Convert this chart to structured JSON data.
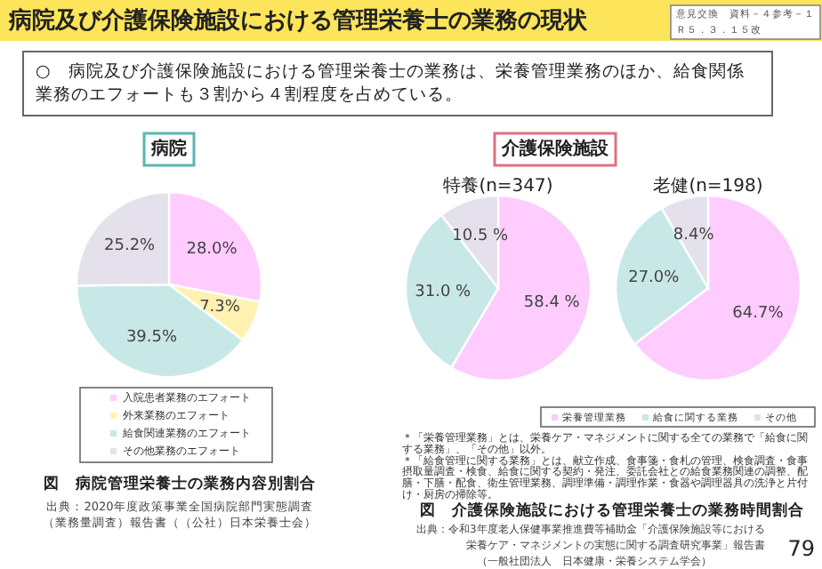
{
  "chart_data": [
    {
      "type": "other",
      "title": "病院及び介護保険施設における管理栄養士の業務の現状",
      "subtitle": "○　病院及び介護保険施設における管理栄養士の業務は、栄養管理業務のほか、給食関係業務のエフォートも３割から４割程度を占めている。",
      "annotations": [
        "意見交換　資料－４参考－１",
        "Ｒ５．３．１５改",
        "79"
      ]
    },
    {
      "type": "pie",
      "title": "病院",
      "categories": [
        "入院患者業務のエフォート",
        "外来業務のエフォート",
        "給食関連業務のエフォート",
        "その他業務のエフォート"
      ],
      "values": [
        28.0,
        7.3,
        39.5,
        25.2
      ],
      "colors": [
        "#ffccff",
        "#fff2b0",
        "#c8e8e8",
        "#e4e0ec"
      ],
      "value_labels": [
        "28.0%",
        "7.3%",
        "39.5%",
        "25.2%"
      ],
      "legend": "bottom",
      "annotations": [
        "図　病院管理栄養士の業務内容別割合",
        "出典：2020年度政策事業全国病院部門実態調査",
        "（業務量調査）報告書（（公社）日本栄養士会）"
      ]
    },
    {
      "type": "pie",
      "title": "介護保険施設",
      "subtitle": "特養(n=347)",
      "categories": [
        "栄養管理業務",
        "給食に関する業務",
        "その他"
      ],
      "values": [
        58.4,
        31.0,
        10.5
      ],
      "colors": [
        "#ffccff",
        "#c8e8e8",
        "#e4e0ec"
      ],
      "value_labels": [
        "58.4 %",
        "31.0 %",
        "10.5 %"
      ],
      "legend": "bottom"
    },
    {
      "type": "pie",
      "title": "老健(n=198)",
      "categories": [
        null,
        null,
        null
      ],
      "values": [
        64.7,
        27.0,
        8.4
      ],
      "colors": [
        "#ffccff",
        "#c8e8e8",
        "#e4e0ec"
      ],
      "value_labels": [
        "64.7%",
        "27.0%",
        "8.4%"
      ],
      "annotations": [
        "＊「栄養管理業務」とは、栄養ケア・マネジメントに関する全ての業務で「給食に関する業務」、「その他」以外。",
        "＊「給食管理に関する業務」とは、献立作成、食事箋・食札の管理、検食調査・食事摂取量調査・検食、給食に関する契約・発注、委託会社との給食業務関連の調整、配膳・下膳・配食、衛生管理業務、調理準備・調理作業・食器や調理器具の洗浄と片付け・厨房の掃除等。",
        "図　介護保険施設における管理栄養士の業務時間割合",
        "出典：令和3年度老人保健事業推進費等補助金「介護保険施設等における",
        "栄養ケア・マネジメントの実態に関する調査研究事業」報告書",
        "（一般社団法人　日本健康・栄養システム学会）"
      ]
    }
  ]
}
